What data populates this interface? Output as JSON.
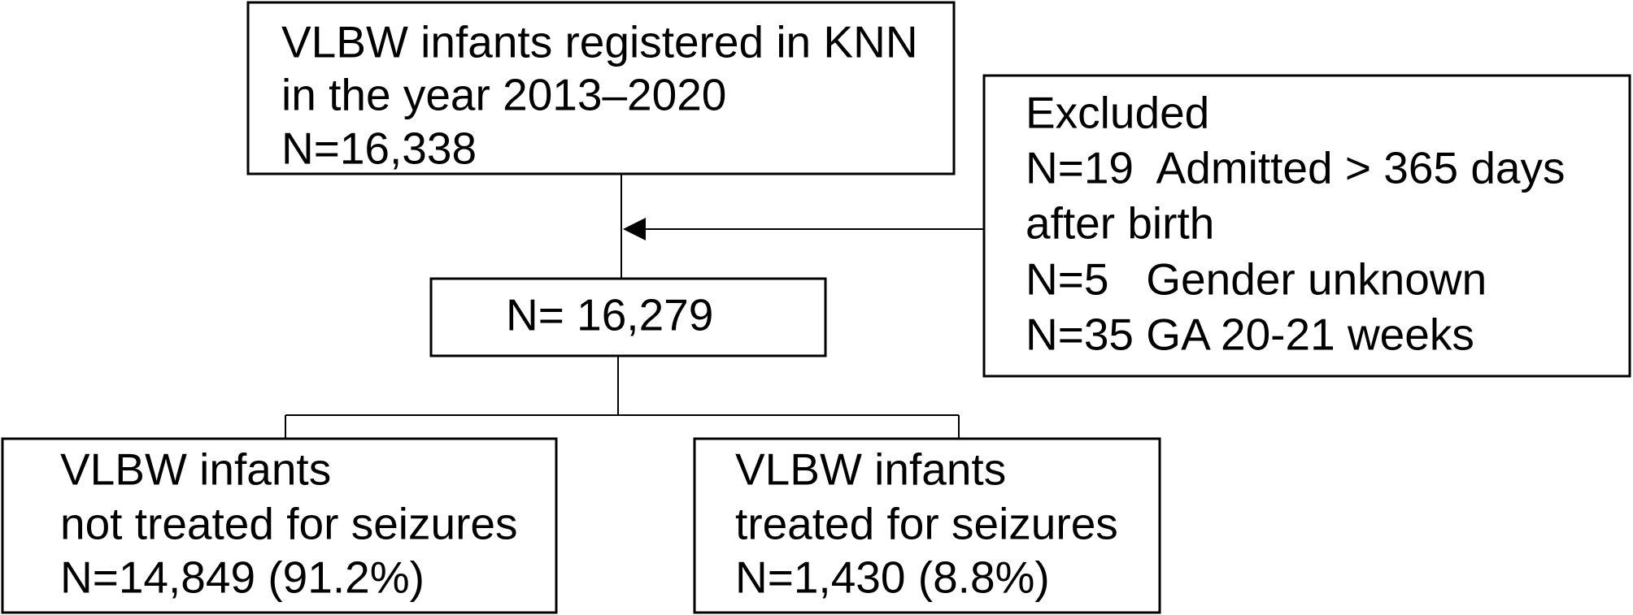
{
  "nodes": [
    {
      "lines": [
        "VLBW infants registered in KNN",
        "in the year 2013–2020",
        "N=16,338"
      ]
    },
    {
      "lines": [
        "Excluded",
        "N=19  Admitted > 365 days",
        "after birth",
        "N=5   Gender unknown",
        "N=35 GA 20-21 weeks"
      ]
    },
    {
      "lines": [
        "N= 16,279"
      ]
    },
    {
      "lines": [
        "VLBW infants",
        "not treated for seizures",
        "N=14,849 (91.2%)"
      ]
    },
    {
      "lines": [
        "VLBW infants",
        "treated for seizures",
        "N=1,430 (8.8%)"
      ]
    }
  ]
}
